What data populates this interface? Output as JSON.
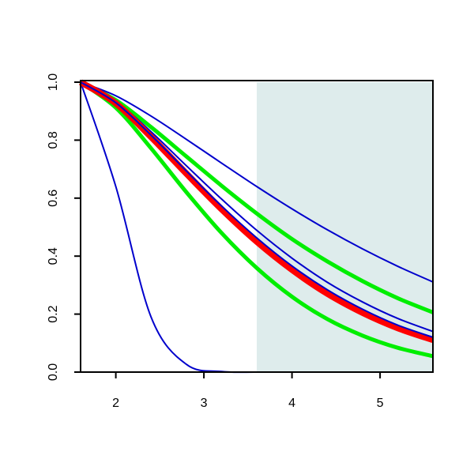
{
  "chart_data": {
    "type": "line",
    "x": [
      1.6,
      2.0,
      2.4,
      2.8,
      3.2,
      3.6,
      4.0,
      4.4,
      4.8,
      5.2,
      5.6
    ],
    "series": [
      {
        "color": "#0000cc",
        "width": 2,
        "values": [
          1,
          0.64,
          0.19,
          0.027,
          0.002,
          0,
          0,
          0,
          0,
          0,
          0
        ]
      },
      {
        "color": "#00ee00",
        "width": 5,
        "values": [
          1,
          0.938,
          0.845,
          0.744,
          0.643,
          0.547,
          0.459,
          0.382,
          0.314,
          0.255,
          0.206
        ]
      },
      {
        "color": "#00ee00",
        "width": 5,
        "values": [
          1,
          0.912,
          0.772,
          0.621,
          0.48,
          0.359,
          0.26,
          0.183,
          0.126,
          0.084,
          0.055
        ]
      },
      {
        "color": "#0000cc",
        "width": 2,
        "values": [
          1,
          0.953,
          0.883,
          0.803,
          0.721,
          0.64,
          0.563,
          0.491,
          0.425,
          0.365,
          0.311
        ]
      },
      {
        "color": "#0000cc",
        "width": 2,
        "values": [
          1,
          0.934,
          0.829,
          0.712,
          0.597,
          0.489,
          0.393,
          0.31,
          0.242,
          0.185,
          0.14
        ]
      },
      {
        "color": "#ff0000",
        "width": 8,
        "values": [
          1,
          0.927,
          0.811,
          0.685,
          0.562,
          0.45,
          0.353,
          0.271,
          0.205,
          0.152,
          0.111
        ]
      },
      {
        "color": "#0000cc",
        "width": 2,
        "values": [
          1,
          0.929,
          0.817,
          0.694,
          0.573,
          0.463,
          0.366,
          0.284,
          0.217,
          0.162,
          0.12
        ]
      }
    ],
    "highlight": {
      "xmin": 3.6,
      "xmax": 5.6,
      "color": "#deecec"
    },
    "xlim": [
      1.6,
      5.6
    ],
    "ylim": [
      0,
      1
    ],
    "xticks": [
      2,
      3,
      4,
      5
    ],
    "yticks": [
      {
        "value": 0,
        "label": "0.0"
      },
      0.2,
      0.4,
      0.6,
      0.8,
      {
        "value": 1,
        "label": "1.0"
      }
    ]
  }
}
